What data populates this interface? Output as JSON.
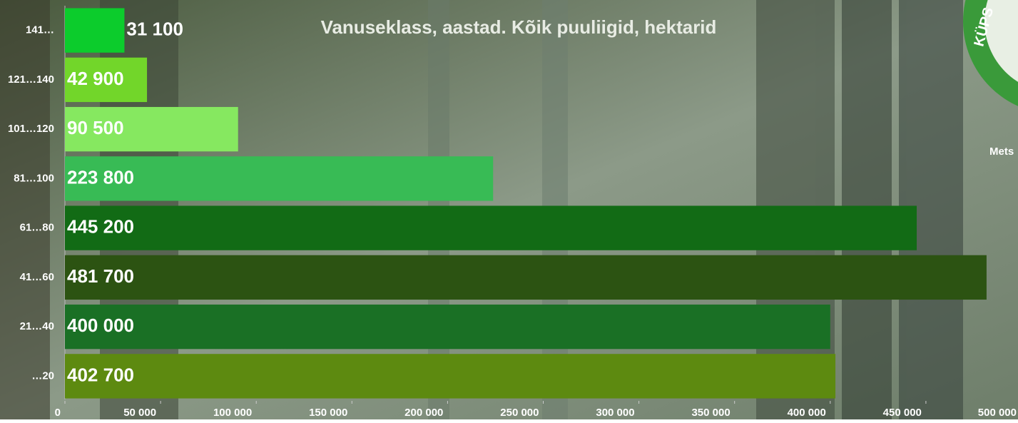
{
  "chart_data": {
    "type": "hbar",
    "title": "Vanuseklass, aastad. Kõik puuliigid, hektarid",
    "categories": [
      "141…",
      "121…140",
      "101…120",
      "81…100",
      "61…80",
      "41…60",
      "21…40",
      "…20"
    ],
    "values": [
      31100,
      42900,
      90500,
      223800,
      445200,
      481700,
      400000,
      402700
    ],
    "value_labels": [
      "31 100",
      "42 900",
      "90 500",
      "223 800",
      "445 200",
      "481 700",
      "400 000",
      "402 700"
    ],
    "colors": [
      "#0ccc2c",
      "#72d62a",
      "#86e860",
      "#38bb55",
      "#126b15",
      "#2c5312",
      "#1a7025",
      "#5d8a10"
    ],
    "xlim": [
      0,
      500000
    ],
    "xticks": [
      0,
      {
        "value": 50000,
        "label": "50 000"
      },
      {
        "value": 100000,
        "label": "100 000"
      },
      {
        "value": 150000,
        "label": "150 000"
      },
      {
        "value": 200000,
        "label": "200 000"
      },
      {
        "value": 250000,
        "label": "250 000"
      },
      {
        "value": 300000,
        "label": "300 000"
      },
      {
        "value": 350000,
        "label": "350 000"
      },
      {
        "value": 400000,
        "label": "400 000"
      },
      {
        "value": 450000,
        "label": "450 000"
      },
      {
        "value": 500000,
        "label": "500 000"
      }
    ]
  },
  "badge": {
    "text": "KÜPS",
    "side_label": "Mets"
  }
}
